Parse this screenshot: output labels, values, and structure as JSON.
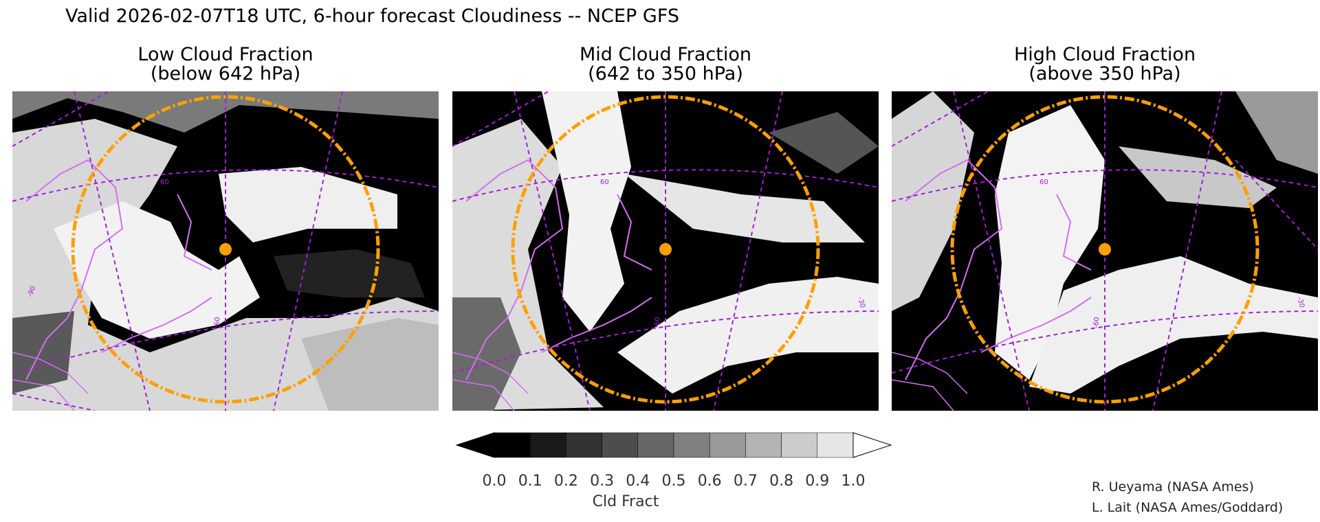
{
  "title": "Valid 2026-02-07T18 UTC, 6-hour forecast Cloudiness -- NCEP GFS",
  "panels": [
    {
      "line1": "Low Cloud Fraction",
      "line2": "(below 642 hPa)"
    },
    {
      "line1": "Mid Cloud Fraction",
      "line2": "(642 to 350 hPa)"
    },
    {
      "line1": "High Cloud Fraction",
      "line2": "(above 350 hPa)"
    }
  ],
  "grid_labels": {
    "lat60": "60",
    "lon60": "-60",
    "lon90": "-90",
    "lon30": "-30"
  },
  "colorbar": {
    "label": "Cld Fract",
    "ticks": [
      "0.0",
      "0.1",
      "0.2",
      "0.3",
      "0.4",
      "0.5",
      "0.6",
      "0.7",
      "0.8",
      "0.9",
      "1.0"
    ],
    "colors": [
      "#000000",
      "#1a1a1a",
      "#333333",
      "#4d4d4d",
      "#666666",
      "#808080",
      "#999999",
      "#b3b3b3",
      "#cccccc",
      "#e6e6e6"
    ]
  },
  "map_colors": {
    "coastline": "#d070f0",
    "gridline": "#a020d0",
    "range_circle": "#ffa000",
    "marker": "#ffa000"
  },
  "credits": [
    "R. Ueyama (NASA Ames)",
    "L. Lait (NASA Ames/Goddard)"
  ]
}
